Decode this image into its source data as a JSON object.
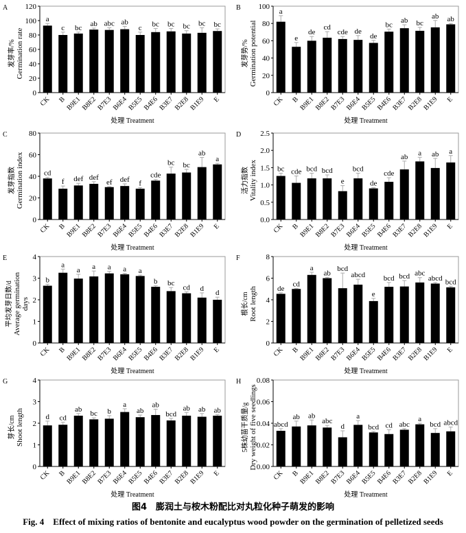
{
  "figure": {
    "caption_cn": "图4　膨润土与桉木粉配比对丸粒化种子萌发的影响",
    "caption_en": "Fig. 4　Effect of mixing ratios of bentonite and eucalyptus wood powder on the germination of pelletized seeds"
  },
  "chart_data": [
    {
      "panel": "A",
      "type": "bar",
      "xlabel": "处理 Treatment",
      "ylabel": [
        "发芽率/%",
        "Germination rate"
      ],
      "ylim": [
        0,
        120
      ],
      "ystep": 20,
      "decimals": 0,
      "categories": [
        "CK",
        "B",
        "B9E1",
        "B8E2",
        "B7E3",
        "B6E4",
        "B5E5",
        "B4E6",
        "B3E7",
        "B2E8",
        "B1E9",
        "E"
      ],
      "values": [
        93,
        80,
        82,
        87.5,
        87,
        88,
        80,
        84,
        85,
        82,
        83,
        85.5
      ],
      "errors": [
        3,
        4,
        2,
        2,
        3,
        4,
        4,
        5,
        4,
        4,
        7,
        3
      ],
      "letters": [
        "a",
        "c",
        "bc",
        "ab",
        "abc",
        "ab",
        "c",
        "bc",
        "bc",
        "bc",
        "bc",
        "bc"
      ]
    },
    {
      "panel": "B",
      "type": "bar",
      "xlabel": "处理 Treatment",
      "ylabel": [
        "发芽势/%",
        "Germination potential"
      ],
      "ylim": [
        0,
        100
      ],
      "ystep": 20,
      "decimals": 0,
      "categories": [
        "CK",
        "B",
        "B9E1",
        "B8E2",
        "B7E3",
        "B6E4",
        "B5E5",
        "B4E6",
        "B3E7",
        "B2E8",
        "B1E9",
        "E"
      ],
      "values": [
        82,
        53,
        60,
        63.5,
        62,
        61,
        57.5,
        70.5,
        74.5,
        71.5,
        75.5,
        79
      ],
      "errors": [
        7,
        5,
        5,
        7,
        3,
        5,
        3,
        3,
        4,
        4,
        8,
        1
      ],
      "letters": [
        "a",
        "e",
        "de",
        "cd",
        "cde",
        "de",
        "de",
        "bc",
        "ab",
        "bc",
        "ab",
        "ab"
      ]
    },
    {
      "panel": "C",
      "type": "bar",
      "xlabel": "处理 Treatment",
      "ylabel": [
        "发芽指数",
        "Germination index"
      ],
      "ylim": [
        0,
        80
      ],
      "ystep": 20,
      "decimals": 0,
      "categories": [
        "CK",
        "B",
        "B9E1",
        "B8E2",
        "B7E3",
        "B6E4",
        "B5E5",
        "B4E6",
        "B3E7",
        "B2E8",
        "B1E9",
        "E"
      ],
      "values": [
        38,
        28.5,
        31.5,
        33,
        30,
        31,
        28.5,
        36,
        42.5,
        43.5,
        48.5,
        51
      ],
      "errors": [
        1,
        2.5,
        2,
        2,
        0.5,
        2,
        1,
        1,
        6,
        3,
        9,
        1
      ],
      "letters": [
        "cd",
        "f",
        "def",
        "def",
        "ef",
        "def",
        "f",
        "cde",
        "bc",
        "bc",
        "ab",
        "a"
      ]
    },
    {
      "panel": "D",
      "type": "bar",
      "xlabel": "处理 Treatment",
      "ylabel": [
        "活力指数",
        "Vitality index"
      ],
      "ylim": [
        0,
        2.5
      ],
      "ystep": 0.5,
      "decimals": 1,
      "categories": [
        "CK",
        "B",
        "B9E1",
        "B8E2",
        "B7E3",
        "B6E4",
        "B5E5",
        "B4E6",
        "B3E7",
        "B2E8",
        "B1E9",
        "E"
      ],
      "values": [
        1.26,
        1.06,
        1.19,
        1.19,
        0.82,
        1.19,
        0.9,
        1.09,
        1.45,
        1.68,
        1.49,
        1.65
      ],
      "errors": [
        0.08,
        0.2,
        0.15,
        0.1,
        0.16,
        0.15,
        0.02,
        0.12,
        0.24,
        0.12,
        0.28,
        0.2
      ],
      "letters": [
        "bc",
        "cde",
        "bcd",
        "bcd",
        "e",
        "bcd",
        "de",
        "cde",
        "ab",
        "a",
        "ab",
        "a"
      ]
    },
    {
      "panel": "E",
      "type": "bar",
      "xlabel": "处理 Treatment",
      "ylabel": [
        "平均发芽日数/d",
        "Average germination",
        "days"
      ],
      "ylim": [
        0,
        4
      ],
      "ystep": 1,
      "decimals": 0,
      "categories": [
        "CK",
        "B",
        "B9E1",
        "B8E2",
        "B7E3",
        "B6E4",
        "B5E5",
        "B4E6",
        "B3E7",
        "B2E8",
        "B1E9",
        "E"
      ],
      "values": [
        2.65,
        3.25,
        2.98,
        3.08,
        3.22,
        3.18,
        3.1,
        2.6,
        2.4,
        2.3,
        2.1,
        2.0
      ],
      "errors": [
        0.07,
        0.17,
        0.2,
        0.25,
        0.1,
        0.04,
        0.04,
        0.05,
        0.17,
        0.07,
        0.22,
        0.12
      ],
      "letters": [
        "b",
        "a",
        "a",
        "a",
        "a",
        "a",
        "a",
        "b",
        "bc",
        "cd",
        "d",
        "d"
      ]
    },
    {
      "panel": "F",
      "type": "bar",
      "xlabel": "处理 Treatment",
      "ylabel": [
        "根长/cm",
        "Root length"
      ],
      "ylim": [
        0,
        8
      ],
      "ystep": 2,
      "decimals": 0,
      "categories": [
        "CK",
        "B",
        "B9E1",
        "B8E2",
        "B7E3",
        "B6E4",
        "B5E5",
        "B4E6",
        "B3E7",
        "B2E8",
        "B1E9",
        "E"
      ],
      "values": [
        4.55,
        5.0,
        6.3,
        6.0,
        5.07,
        5.4,
        3.88,
        5.2,
        5.23,
        5.6,
        5.5,
        5.15
      ],
      "errors": [
        0.1,
        0.05,
        0.25,
        0.07,
        1.4,
        0.5,
        0.25,
        0.4,
        0.55,
        0.45,
        0.1,
        0.1
      ],
      "letters": [
        "de",
        "cd",
        "a",
        "ab",
        "bcd",
        "abcd",
        "e",
        "bcd",
        "bcd",
        "abc",
        "abcd",
        "bcd"
      ]
    },
    {
      "panel": "G",
      "type": "bar",
      "xlabel": "处理 Treatment",
      "ylabel": [
        "芽长/cm",
        "Shoot length"
      ],
      "ylim": [
        0,
        4
      ],
      "ystep": 1,
      "decimals": 0,
      "categories": [
        "CK",
        "B",
        "B9E1",
        "B8E2",
        "B7E3",
        "B6E4",
        "B5E5",
        "B4E6",
        "B3E7",
        "B2E8",
        "B1E9",
        "E"
      ],
      "values": [
        1.9,
        1.93,
        2.35,
        2.18,
        2.21,
        2.52,
        2.28,
        2.38,
        2.13,
        2.35,
        2.3,
        2.35
      ],
      "errors": [
        0.2,
        0.12,
        0.1,
        0.07,
        0.14,
        0.15,
        0.1,
        0.27,
        0.1,
        0.15,
        0.15,
        0.05
      ],
      "letters": [
        "d",
        "cd",
        "ab",
        "bc",
        "b",
        "a",
        "ab",
        "ab",
        "bcd",
        "ab",
        "ab",
        "ab"
      ]
    },
    {
      "panel": "H",
      "type": "bar",
      "xlabel": "处理 Treatment",
      "ylabel": [
        "5株幼苗干质量/g",
        "Dry weight of five seedlings"
      ],
      "ylim": [
        0,
        0.08
      ],
      "ystep": 0.02,
      "decimals": 2,
      "categories": [
        "CK",
        "B",
        "B9E1",
        "B8E2",
        "B7E3",
        "B6E4",
        "B5E5",
        "B4E6",
        "B3E7",
        "B2E8",
        "B1E9",
        "E"
      ],
      "values": [
        0.033,
        0.037,
        0.038,
        0.036,
        0.027,
        0.0385,
        0.0315,
        0.03,
        0.034,
        0.039,
        0.031,
        0.0325
      ],
      "errors": [
        0.002,
        0.005,
        0.005,
        0.002,
        0.006,
        0.004,
        0.001,
        0.004,
        0.001,
        0.001,
        0.004,
        0.004
      ],
      "letters": [
        "abcd",
        "ab",
        "ab",
        "abc",
        "d",
        "a",
        "bcd",
        "cd",
        "abc",
        "a",
        "bcd",
        "abcd"
      ]
    }
  ]
}
